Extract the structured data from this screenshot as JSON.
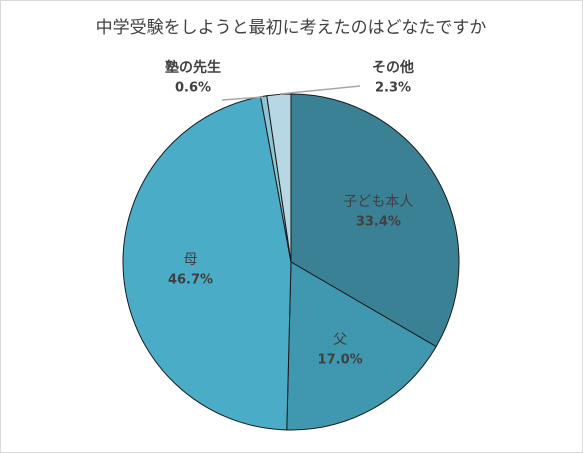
{
  "chart_data": {
    "type": "pie",
    "title": "中学受験をしようと最初に考えたのはどなたですか",
    "categories": [
      "子ども本人",
      "父",
      "母",
      "塾の先生",
      "その他"
    ],
    "values": [
      33.4,
      17.0,
      46.7,
      0.6,
      2.3
    ],
    "value_labels": [
      "33.4%",
      "17.0%",
      "46.7%",
      "0.6%",
      "2.3%"
    ],
    "colors": [
      "#3a8196",
      "#3f98b0",
      "#4aacc6",
      "#8fc3d6",
      "#b7d7e4"
    ]
  }
}
